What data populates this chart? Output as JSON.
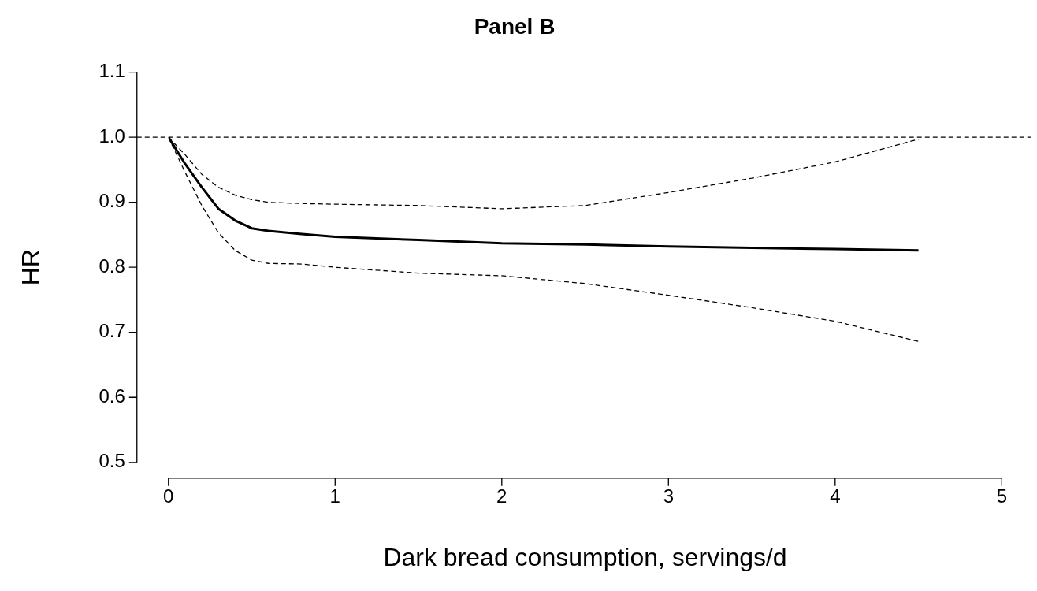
{
  "chart_data": {
    "type": "line",
    "title": "Panel B",
    "xlabel": "Dark bread consumption, servings/d",
    "ylabel": "HR",
    "x": [
      0,
      0.1,
      0.2,
      0.3,
      0.4,
      0.5,
      0.6,
      0.8,
      1,
      1.5,
      2,
      2.5,
      3,
      3.5,
      4,
      4.5
    ],
    "series": [
      {
        "color": "#000000",
        "line_style": "solid",
        "values": [
          1,
          0.959,
          0.923,
          0.89,
          0.872,
          0.86,
          0.856,
          0.851,
          0.847,
          0.842,
          0.837,
          0.835,
          0.832,
          0.83,
          0.828,
          0.826
        ]
      },
      {
        "color": "#000000",
        "line_style": "dashed",
        "values": [
          1,
          0.973,
          0.943,
          0.923,
          0.911,
          0.904,
          0.9,
          0.898,
          0.897,
          0.895,
          0.89,
          0.895,
          0.915,
          0.937,
          0.962,
          0.997
        ]
      },
      {
        "color": "#000000",
        "line_style": "dashed",
        "values": [
          1,
          0.946,
          0.895,
          0.853,
          0.826,
          0.811,
          0.806,
          0.805,
          0.8,
          0.791,
          0.787,
          0.775,
          0.757,
          0.738,
          0.717,
          0.686
        ]
      }
    ],
    "xlim": [
      0,
      5
    ],
    "xticks": [
      0,
      1,
      2,
      3,
      4,
      5
    ],
    "ylim": [
      0.5,
      1.1
    ],
    "yticks": [
      {
        "value": 0.5,
        "label": "0.5"
      },
      {
        "value": 0.6,
        "label": "0.6"
      },
      {
        "value": 0.7,
        "label": "0.7"
      },
      {
        "value": 0.8,
        "label": "0.8"
      },
      {
        "value": 0.9,
        "label": "0.9"
      },
      {
        "value": 1.0,
        "label": "1.0"
      },
      {
        "value": 1.1,
        "label": "1.1"
      }
    ],
    "ref_lines": [
      {
        "axis": "y",
        "value": 1,
        "color": "#000000",
        "line_style": "dashed"
      }
    ],
    "grid": false,
    "legend": false,
    "marker": "none"
  }
}
